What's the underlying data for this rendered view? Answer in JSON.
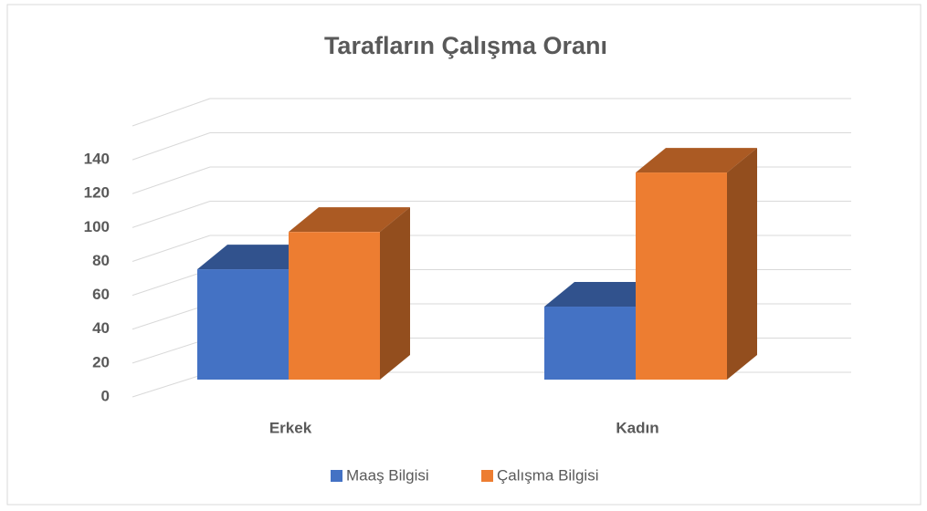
{
  "chart_data": {
    "type": "bar3d",
    "title": "Tarafların Çalışma Oranı",
    "categories": [
      "Erkek",
      "Kadın"
    ],
    "series": [
      {
        "name": "Maaş Bilgisi",
        "color": "#4472c4",
        "values": [
          65,
          43
        ]
      },
      {
        "name": "Çalışma Bilgisi",
        "color": "#ed7d31",
        "values": [
          87,
          122
        ]
      }
    ],
    "ylim": [
      0,
      160
    ],
    "yticks": [
      0,
      20,
      40,
      60,
      80,
      100,
      120,
      140
    ],
    "grid": true,
    "legend": "bottom"
  }
}
